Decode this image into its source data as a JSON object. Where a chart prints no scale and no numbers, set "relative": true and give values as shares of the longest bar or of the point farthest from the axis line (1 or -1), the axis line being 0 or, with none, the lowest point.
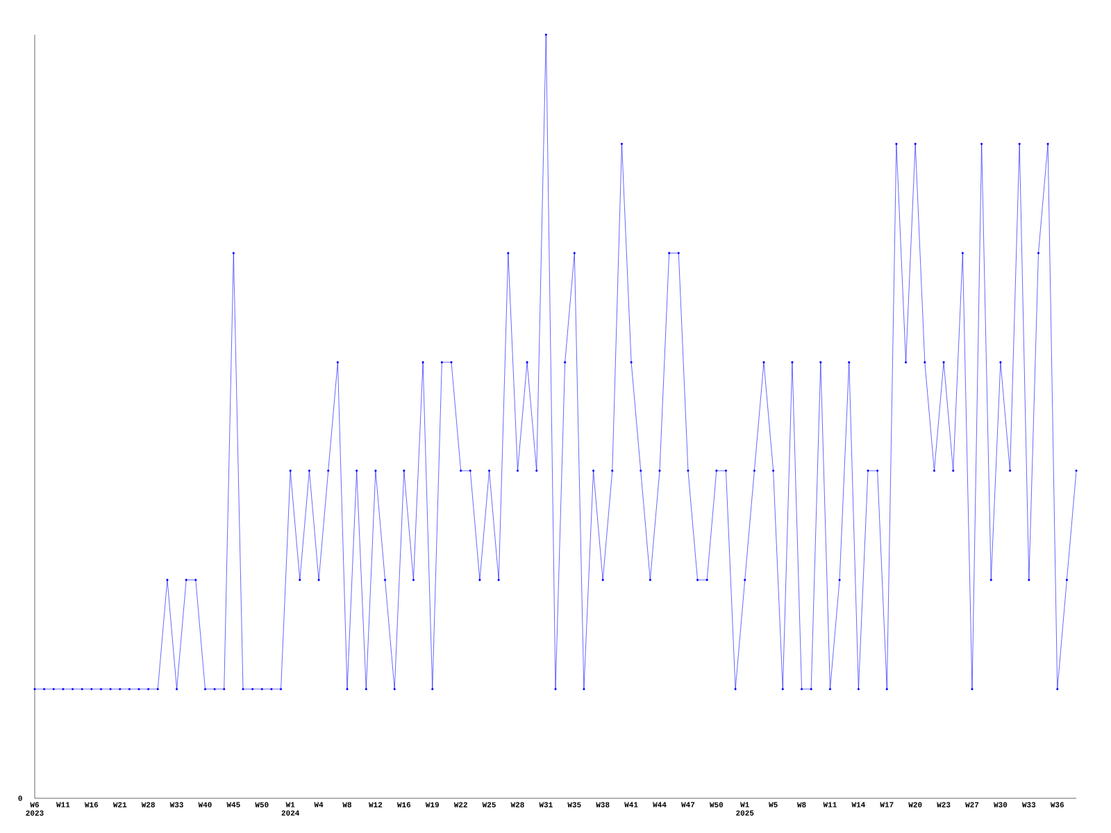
{
  "chart_data": {
    "type": "line",
    "relative": true,
    "marker": "circle",
    "line_style": "solid",
    "grid": false,
    "annotations": [
      "0"
    ],
    "categories": [
      "W6 2023",
      null,
      null,
      "W11",
      null,
      null,
      "W16",
      null,
      null,
      "W21",
      null,
      null,
      "W28",
      null,
      null,
      "W33",
      null,
      null,
      "W40",
      null,
      null,
      "W45",
      null,
      null,
      "W50",
      null,
      null,
      "W1 2024",
      null,
      null,
      "W4",
      null,
      null,
      "W8",
      null,
      null,
      "W12",
      null,
      null,
      "W16",
      null,
      null,
      "W19",
      null,
      null,
      "W22",
      null,
      null,
      "W25",
      null,
      null,
      "W28",
      null,
      null,
      "W31",
      null,
      null,
      "W35",
      null,
      null,
      "W38",
      null,
      null,
      "W41",
      null,
      null,
      "W44",
      null,
      null,
      "W47",
      null,
      null,
      "W50",
      null,
      null,
      "W1 2025",
      null,
      null,
      "W5",
      null,
      null,
      "W8",
      null,
      null,
      "W11",
      null,
      null,
      "W14",
      null,
      null,
      "W17",
      null,
      null,
      "W20",
      null,
      null,
      "W23",
      null,
      null,
      "W27",
      null,
      null,
      "W30",
      null,
      null,
      "W33",
      null,
      null,
      "W36",
      null,
      null
    ],
    "series": [
      {
        "color": "#0000ff",
        "values": [
          0.143,
          0.143,
          0.143,
          0.143,
          0.143,
          0.143,
          0.143,
          0.143,
          0.143,
          0.143,
          0.143,
          0.143,
          0.143,
          0.143,
          0.286,
          0.143,
          0.286,
          0.286,
          0.143,
          0.143,
          0.143,
          0.714,
          0.143,
          0.143,
          0.143,
          0.143,
          0.143,
          0.429,
          0.286,
          0.429,
          0.286,
          0.429,
          0.571,
          0.143,
          0.429,
          0.143,
          0.429,
          0.286,
          0.143,
          0.429,
          0.286,
          0.571,
          0.143,
          0.571,
          0.571,
          0.429,
          0.429,
          0.286,
          0.429,
          0.286,
          0.714,
          0.429,
          0.571,
          0.429,
          1,
          0.143,
          0.571,
          0.714,
          0.143,
          0.429,
          0.286,
          0.429,
          0.857,
          0.571,
          0.429,
          0.286,
          0.429,
          0.714,
          0.714,
          0.429,
          0.286,
          0.286,
          0.429,
          0.429,
          0.143,
          0.286,
          0.429,
          0.571,
          0.429,
          0.143,
          0.571,
          0.143,
          0.143,
          0.571,
          0.143,
          0.286,
          0.571,
          0.143,
          0.429,
          0.429,
          0.143,
          0.857,
          0.571,
          0.857,
          0.571,
          0.429,
          0.571,
          0.429,
          0.714,
          0.143,
          0.857,
          0.286,
          0.571,
          0.429,
          0.857,
          0.286,
          0.714,
          0.857,
          0.143,
          0.286,
          0.429
        ]
      }
    ]
  }
}
